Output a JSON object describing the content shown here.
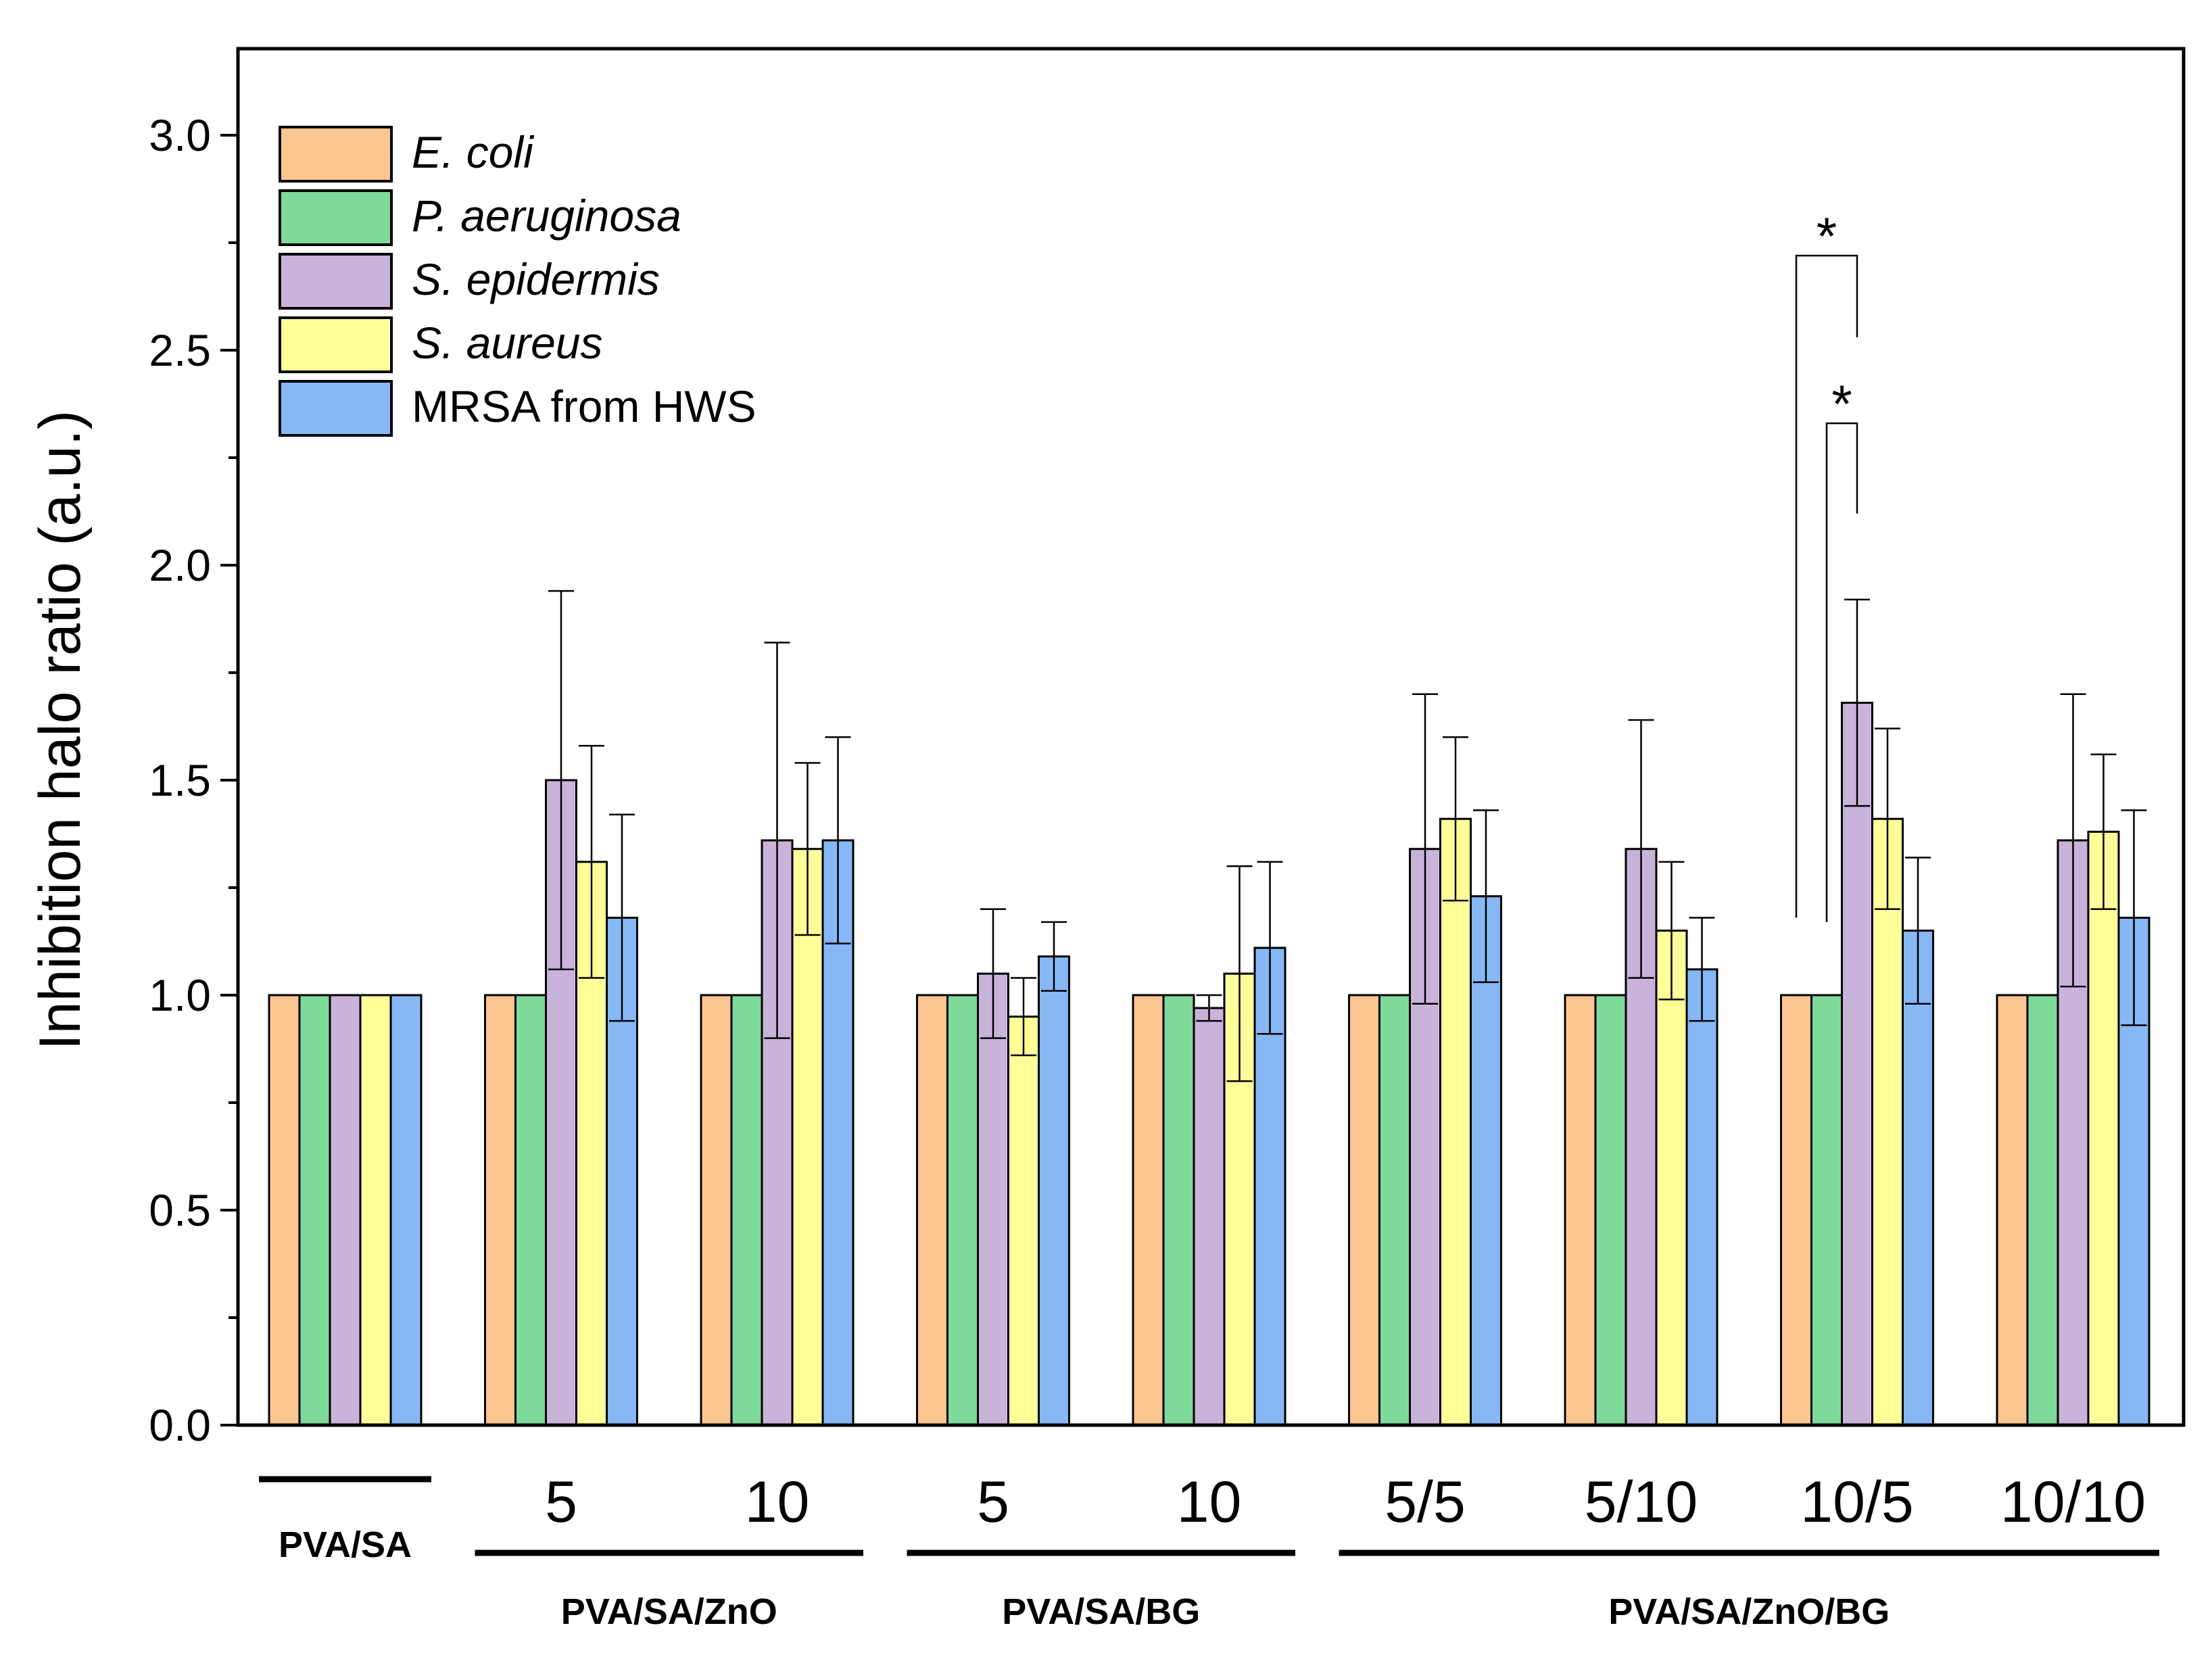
{
  "chart_data": {
    "type": "bar",
    "title": "",
    "xlabel": "",
    "ylabel": "Inhibition halo ratio (a.u.)",
    "ylim": [
      0,
      3.2
    ],
    "yticks": [
      "0.0",
      "0.5",
      "1.0",
      "1.5",
      "2.0",
      "2.5",
      "3.0"
    ],
    "grid": false,
    "legend_position": "top-left",
    "categories": [
      "",
      "5",
      "10",
      "5",
      "10",
      "5/5",
      "5/10",
      "10/5",
      "10/10"
    ],
    "category_families": [
      {
        "label": "PVA/SA",
        "from": 0,
        "to": 0
      },
      {
        "label": "PVA/SA/ZnO",
        "from": 1,
        "to": 2
      },
      {
        "label": "PVA/SA/BG",
        "from": 3,
        "to": 4
      },
      {
        "label": "PVA/SA/ZnO/BG",
        "from": 5,
        "to": 8
      }
    ],
    "series": [
      {
        "name": "E. coli",
        "italic": true,
        "color": "#FDC590",
        "values": [
          1,
          1,
          1,
          1,
          1,
          1,
          1,
          1,
          1
        ],
        "errors": [
          0,
          0,
          0,
          0,
          0,
          0,
          0,
          0,
          0
        ]
      },
      {
        "name": "P. aeruginosa",
        "italic": true,
        "color": "#7FD99A",
        "values": [
          1,
          1,
          1,
          1,
          1,
          1,
          1,
          1,
          1
        ],
        "errors": [
          0,
          0,
          0,
          0,
          0,
          0,
          0,
          0,
          0
        ]
      },
      {
        "name": "S. epidermis",
        "italic": true,
        "color": "#C9B3DB",
        "values": [
          1,
          1.5,
          1.36,
          1.05,
          0.97,
          1.34,
          1.34,
          1.68,
          1.36
        ],
        "errors": [
          0,
          0.44,
          0.46,
          0.15,
          0.03,
          0.36,
          0.3,
          0.24,
          0.34
        ]
      },
      {
        "name": "S. aureus",
        "italic": true,
        "color": "#FFFF99",
        "values": [
          1,
          1.31,
          1.34,
          0.95,
          1.05,
          1.41,
          1.15,
          1.41,
          1.38
        ],
        "errors": [
          0,
          0.27,
          0.2,
          0.09,
          0.25,
          0.19,
          0.16,
          0.21,
          0.18
        ]
      },
      {
        "name": "MRSA from HWS",
        "italic": false,
        "color": "#87B8F5",
        "values": [
          1,
          1.18,
          1.36,
          1.09,
          1.11,
          1.23,
          1.06,
          1.15,
          1.18
        ],
        "errors": [
          0,
          0.24,
          0.24,
          0.08,
          0.2,
          0.2,
          0.12,
          0.17,
          0.25
        ]
      }
    ],
    "annotations": [
      {
        "text": "*",
        "category": 7,
        "from_series": 0,
        "to_series": 2,
        "bracket_top": 2.72
      },
      {
        "text": "*",
        "category": 7,
        "from_series": 1,
        "to_series": 2,
        "bracket_top": 2.33
      }
    ]
  }
}
